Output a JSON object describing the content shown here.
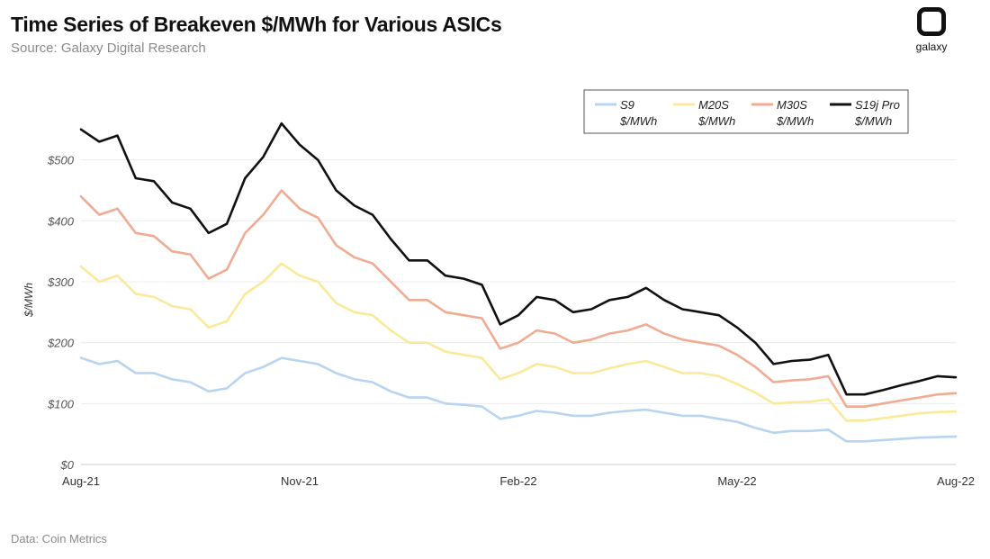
{
  "header": {
    "title": "Time Series of Breakeven $/MWh for Various ASICs",
    "subtitle": "Source: Galaxy Digital Research",
    "logo_text": "galaxy"
  },
  "footer": {
    "note": "Data: Coin Metrics"
  },
  "chart_data": {
    "type": "line",
    "title": "Time Series of Breakeven $/MWh for Various ASICs",
    "xlabel": "",
    "ylabel": "$/MWh",
    "ylim": [
      0,
      600
    ],
    "grid": true,
    "legend_position": "top-right",
    "y_ticks": [
      {
        "value": 0,
        "label": "$0"
      },
      {
        "value": 100,
        "label": "$100"
      },
      {
        "value": 200,
        "label": "$200"
      },
      {
        "value": 300,
        "label": "$300"
      },
      {
        "value": 400,
        "label": "$400"
      },
      {
        "value": 500,
        "label": "$500"
      }
    ],
    "x_ticks": [
      {
        "value": 0,
        "label": "Aug-21"
      },
      {
        "value": 3,
        "label": "Nov-21"
      },
      {
        "value": 6,
        "label": "Feb-22"
      },
      {
        "value": 9,
        "label": "May-22"
      },
      {
        "value": 12,
        "label": "Aug-22"
      }
    ],
    "x_range": [
      0,
      12
    ],
    "x": [
      0,
      0.25,
      0.5,
      0.75,
      1,
      1.25,
      1.5,
      1.75,
      2,
      2.25,
      2.5,
      2.75,
      3,
      3.25,
      3.5,
      3.75,
      4,
      4.25,
      4.5,
      4.75,
      5,
      5.25,
      5.5,
      5.75,
      6,
      6.25,
      6.5,
      6.75,
      7,
      7.25,
      7.5,
      7.75,
      8,
      8.25,
      8.5,
      8.75,
      9,
      9.25,
      9.5,
      9.75,
      10,
      10.25,
      10.5,
      10.75,
      11,
      11.25,
      11.5,
      11.75,
      12
    ],
    "series": [
      {
        "name": "S9 $/MWh",
        "legend_line1": "S9",
        "legend_line2": "$/MWh",
        "color": "#b7d4f0",
        "values": [
          175,
          165,
          170,
          150,
          150,
          140,
          135,
          120,
          125,
          150,
          160,
          175,
          170,
          165,
          150,
          140,
          135,
          120,
          110,
          110,
          100,
          98,
          95,
          75,
          80,
          88,
          85,
          80,
          80,
          85,
          88,
          90,
          85,
          80,
          80,
          75,
          70,
          60,
          52,
          55,
          55,
          57,
          38,
          38,
          40,
          42,
          44,
          45,
          46
        ]
      },
      {
        "name": "M20S $/MWh",
        "legend_line1": "M20S",
        "legend_line2": "$/MWh",
        "color": "#fbe99a",
        "values": [
          325,
          300,
          310,
          280,
          275,
          260,
          255,
          225,
          235,
          280,
          300,
          330,
          310,
          300,
          265,
          250,
          245,
          220,
          200,
          200,
          185,
          180,
          175,
          140,
          150,
          165,
          160,
          150,
          150,
          158,
          165,
          170,
          160,
          150,
          150,
          145,
          132,
          118,
          100,
          102,
          103,
          107,
          72,
          72,
          76,
          80,
          84,
          86,
          87
        ]
      },
      {
        "name": "M30S $/MWh",
        "legend_line1": "M30S",
        "legend_line2": "$/MWh",
        "color": "#f0ab93",
        "values": [
          440,
          410,
          420,
          380,
          375,
          350,
          345,
          305,
          320,
          380,
          410,
          450,
          420,
          405,
          360,
          340,
          330,
          300,
          270,
          270,
          250,
          245,
          240,
          190,
          200,
          220,
          215,
          200,
          205,
          215,
          220,
          230,
          215,
          205,
          200,
          195,
          180,
          160,
          135,
          138,
          140,
          145,
          95,
          95,
          100,
          105,
          110,
          115,
          117
        ]
      },
      {
        "name": "S19j Pro $/MWh",
        "legend_line1": "S19j Pro",
        "legend_line2": "$/MWh",
        "color": "#111111",
        "values": [
          550,
          530,
          540,
          470,
          465,
          430,
          420,
          380,
          395,
          470,
          505,
          560,
          525,
          500,
          450,
          425,
          410,
          370,
          335,
          335,
          310,
          305,
          295,
          230,
          245,
          275,
          270,
          250,
          255,
          270,
          275,
          290,
          270,
          255,
          250,
          245,
          225,
          200,
          165,
          170,
          172,
          180,
          115,
          115,
          122,
          130,
          137,
          145,
          143
        ]
      }
    ]
  }
}
